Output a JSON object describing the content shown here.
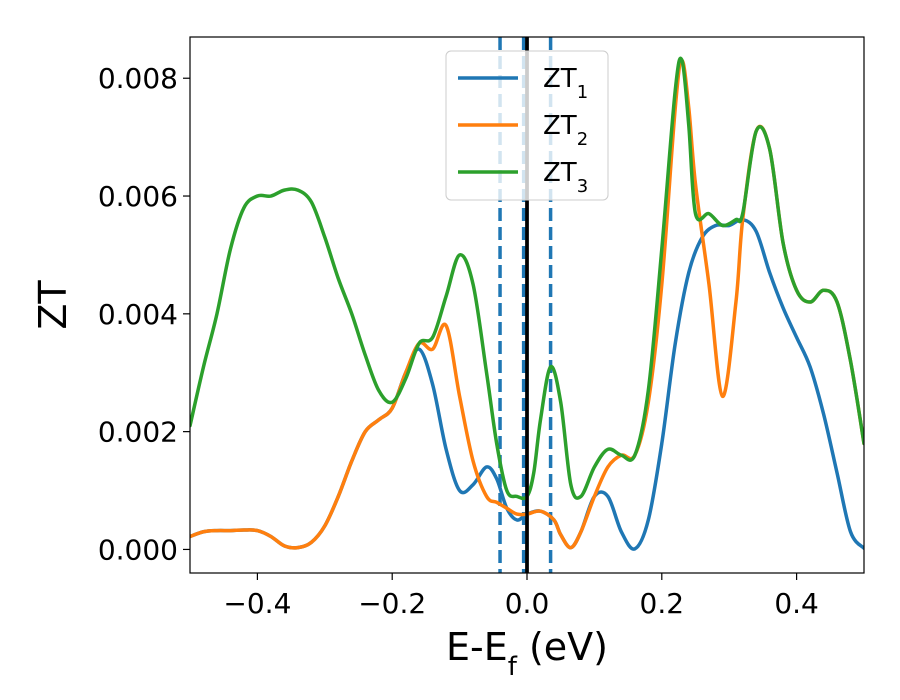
{
  "chart_data": {
    "type": "line",
    "title": "",
    "xlabel": "E-E",
    "xlabel_sub": "f",
    "xlabel_unit": " (eV)",
    "ylabel": "ZT",
    "xlim": [
      -0.5,
      0.5
    ],
    "ylim": [
      -0.0004,
      0.0087
    ],
    "xticks": [
      -0.4,
      -0.2,
      0.0,
      0.2,
      0.4
    ],
    "xtick_labels": [
      "−0.4",
      "−0.2",
      "0.0",
      "0.2",
      "0.4"
    ],
    "yticks": [
      0.0,
      0.002,
      0.004,
      0.006,
      0.008
    ],
    "ytick_labels": [
      "0.000",
      "0.002",
      "0.004",
      "0.006",
      "0.008"
    ],
    "grid": false,
    "legend_position": "top-center",
    "vlines": [
      {
        "x": -0.04,
        "style": "dashed",
        "color": "#1f77b4"
      },
      {
        "x": -0.005,
        "style": "dashed",
        "color": "#1f77b4"
      },
      {
        "x": 0.035,
        "style": "dashed",
        "color": "#1f77b4"
      },
      {
        "x": 0.0,
        "style": "solid",
        "color": "#000000"
      }
    ],
    "series": [
      {
        "name": "ZT",
        "name_sub": "1",
        "color": "#1f77b4",
        "x": [
          -0.5,
          -0.48,
          -0.46,
          -0.44,
          -0.42,
          -0.4,
          -0.38,
          -0.36,
          -0.34,
          -0.32,
          -0.3,
          -0.28,
          -0.26,
          -0.24,
          -0.22,
          -0.2,
          -0.18,
          -0.16,
          -0.14,
          -0.12,
          -0.1,
          -0.08,
          -0.06,
          -0.045,
          -0.03,
          -0.015,
          0.0,
          0.02,
          0.04,
          0.05,
          0.065,
          0.08,
          0.1,
          0.12,
          0.14,
          0.16,
          0.18,
          0.2,
          0.22,
          0.24,
          0.26,
          0.28,
          0.3,
          0.32,
          0.34,
          0.36,
          0.38,
          0.4,
          0.42,
          0.44,
          0.46,
          0.48,
          0.5
        ],
        "y": [
          0.00022,
          0.0003,
          0.00032,
          0.00032,
          0.00033,
          0.00032,
          0.00022,
          6e-05,
          3e-05,
          0.00012,
          0.0004,
          0.0009,
          0.0015,
          0.002,
          0.0022,
          0.0024,
          0.003,
          0.0034,
          0.0028,
          0.0017,
          0.001,
          0.0011,
          0.0014,
          0.0012,
          0.0007,
          0.0005,
          0.0006,
          0.00065,
          0.0005,
          0.00025,
          3e-05,
          0.0003,
          0.0009,
          0.0009,
          0.0003,
          1e-05,
          0.0005,
          0.0018,
          0.0035,
          0.0047,
          0.0053,
          0.0055,
          0.0055,
          0.0056,
          0.0054,
          0.0047,
          0.0041,
          0.0036,
          0.0031,
          0.0023,
          0.0013,
          0.0003,
          2e-05
        ]
      },
      {
        "name": "ZT",
        "name_sub": "2",
        "color": "#ff7f0e",
        "x": [
          -0.5,
          -0.48,
          -0.46,
          -0.44,
          -0.42,
          -0.4,
          -0.38,
          -0.36,
          -0.34,
          -0.32,
          -0.3,
          -0.28,
          -0.26,
          -0.24,
          -0.22,
          -0.2,
          -0.18,
          -0.16,
          -0.14,
          -0.12,
          -0.1,
          -0.08,
          -0.06,
          -0.045,
          -0.03,
          -0.015,
          0.0,
          0.02,
          0.04,
          0.05,
          0.065,
          0.08,
          0.1,
          0.12,
          0.14,
          0.16,
          0.18,
          0.2,
          0.22,
          0.23,
          0.24,
          0.25,
          0.27,
          0.29,
          0.31,
          0.32,
          0.34,
          0.36,
          0.38,
          0.4,
          0.42,
          0.44,
          0.46,
          0.48,
          0.5
        ],
        "y": [
          0.00022,
          0.0003,
          0.00032,
          0.00032,
          0.00033,
          0.00032,
          0.00022,
          6e-05,
          3e-05,
          0.00012,
          0.0004,
          0.0009,
          0.0015,
          0.002,
          0.0022,
          0.0024,
          0.003,
          0.0035,
          0.0034,
          0.0038,
          0.0026,
          0.0015,
          0.0009,
          0.0008,
          0.0007,
          0.0006,
          0.0006,
          0.00065,
          0.0005,
          0.00025,
          3e-05,
          0.0003,
          0.0009,
          0.0014,
          0.0016,
          0.0016,
          0.0025,
          0.0045,
          0.0075,
          0.0083,
          0.0075,
          0.0062,
          0.0045,
          0.0026,
          0.0042,
          0.0056,
          0.0071,
          0.0068,
          0.0052,
          0.0044,
          0.0042,
          0.0044,
          0.0042,
          0.0032,
          0.0018
        ]
      },
      {
        "name": "ZT",
        "name_sub": "3",
        "color": "#2ca02c",
        "x": [
          -0.5,
          -0.48,
          -0.46,
          -0.44,
          -0.42,
          -0.4,
          -0.38,
          -0.36,
          -0.34,
          -0.32,
          -0.3,
          -0.28,
          -0.26,
          -0.24,
          -0.22,
          -0.2,
          -0.18,
          -0.16,
          -0.14,
          -0.12,
          -0.1,
          -0.08,
          -0.06,
          -0.045,
          -0.03,
          -0.015,
          0.0,
          0.01,
          0.02,
          0.035,
          0.05,
          0.065,
          0.08,
          0.1,
          0.12,
          0.14,
          0.16,
          0.18,
          0.2,
          0.22,
          0.23,
          0.24,
          0.25,
          0.27,
          0.29,
          0.31,
          0.32,
          0.34,
          0.36,
          0.38,
          0.4,
          0.42,
          0.44,
          0.46,
          0.48,
          0.5
        ],
        "y": [
          0.0021,
          0.0031,
          0.004,
          0.0051,
          0.0058,
          0.006,
          0.006,
          0.0061,
          0.0061,
          0.0059,
          0.0053,
          0.0046,
          0.004,
          0.0033,
          0.0027,
          0.0025,
          0.0029,
          0.0035,
          0.0036,
          0.0043,
          0.005,
          0.0045,
          0.003,
          0.0018,
          0.001,
          0.0009,
          0.0009,
          0.0013,
          0.0022,
          0.0031,
          0.0025,
          0.0011,
          0.0009,
          0.0014,
          0.0017,
          0.0016,
          0.0016,
          0.0027,
          0.0051,
          0.0078,
          0.0083,
          0.0072,
          0.0057,
          0.0057,
          0.0055,
          0.0056,
          0.0057,
          0.0071,
          0.0068,
          0.0052,
          0.0044,
          0.0042,
          0.0044,
          0.0042,
          0.0032,
          0.0018
        ]
      }
    ]
  }
}
